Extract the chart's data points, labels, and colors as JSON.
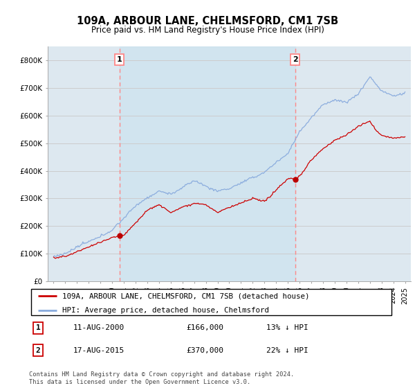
{
  "title1": "109A, ARBOUR LANE, CHELMSFORD, CM1 7SB",
  "title2": "Price paid vs. HM Land Registry's House Price Index (HPI)",
  "ylabel_ticks": [
    "£0",
    "£100K",
    "£200K",
    "£300K",
    "£400K",
    "£500K",
    "£600K",
    "£700K",
    "£800K"
  ],
  "yvalues": [
    0,
    100000,
    200000,
    300000,
    400000,
    500000,
    600000,
    700000,
    800000
  ],
  "ylim": [
    0,
    850000
  ],
  "xlim_start": 1994.5,
  "xlim_end": 2025.5,
  "sale1_x": 2000.617,
  "sale1_y": 166000,
  "sale1_label": "1",
  "sale1_date": "11-AUG-2000",
  "sale1_price": "£166,000",
  "sale1_hpi": "13% ↓ HPI",
  "sale2_x": 2015.617,
  "sale2_y": 370000,
  "sale2_label": "2",
  "sale2_date": "17-AUG-2015",
  "sale2_price": "£370,000",
  "sale2_hpi": "22% ↓ HPI",
  "line_color_property": "#cc0000",
  "line_color_hpi": "#88aadd",
  "dot_color": "#bb0000",
  "vline_color": "#ff8888",
  "grid_color": "#cccccc",
  "bg_color": "#dde8f0",
  "highlight_color": "#ccddf0",
  "legend_label_property": "109A, ARBOUR LANE, CHELMSFORD, CM1 7SB (detached house)",
  "legend_label_hpi": "HPI: Average price, detached house, Chelmsford",
  "footnote": "Contains HM Land Registry data © Crown copyright and database right 2024.\nThis data is licensed under the Open Government Licence v3.0."
}
